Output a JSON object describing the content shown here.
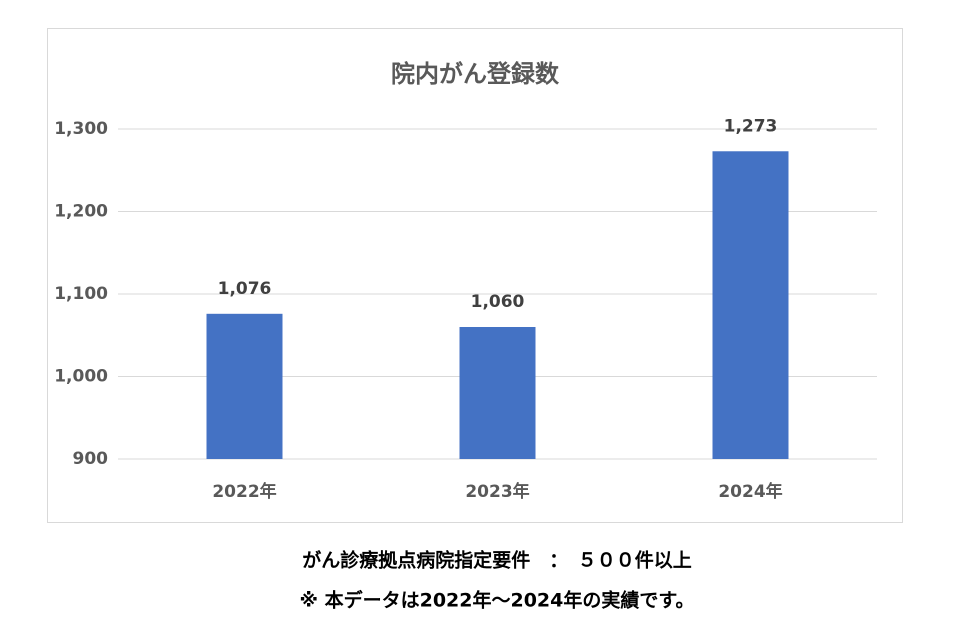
{
  "chart_data": {
    "type": "bar",
    "title": "院内がん登録数",
    "categories": [
      "2022年",
      "2023年",
      "2024年"
    ],
    "values": [
      1076,
      1060,
      1273
    ],
    "value_labels": [
      "1,076",
      "1,060",
      "1,273"
    ],
    "color": "#4472c4",
    "ylim": [
      900,
      1300
    ],
    "yticks": [
      900,
      {
        "value": 1000,
        "label": "1,000"
      },
      {
        "value": 1100,
        "label": "1,100"
      },
      {
        "value": 1200,
        "label": "1,200"
      },
      {
        "value": 1300,
        "label": "1,300"
      }
    ],
    "grid": true
  },
  "footnotes": [
    "がん診療拠点病院指定要件　：　５００件以上",
    "※  本データは2022年～2024年の実績です。"
  ]
}
